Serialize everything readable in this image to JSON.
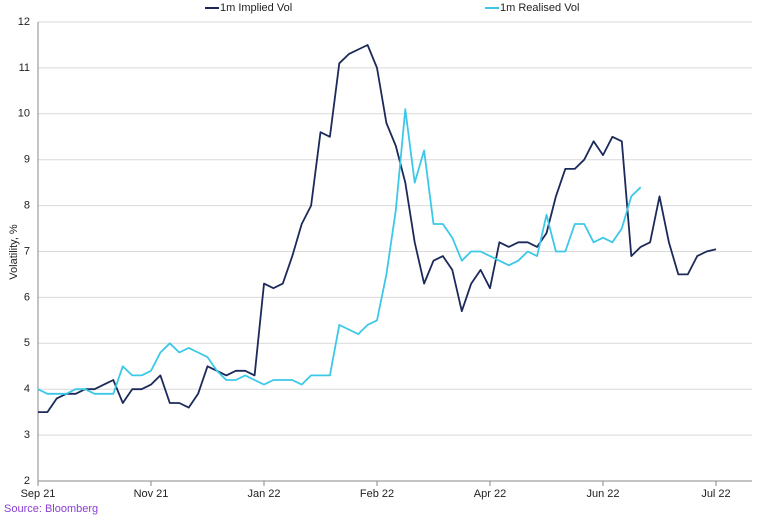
{
  "chart_data": {
    "type": "line",
    "y_label": "Volatility, %",
    "source": "Source: Bloomberg",
    "categories": [
      "Sep 21",
      null,
      null,
      null,
      null,
      null,
      null,
      null,
      null,
      null,
      null,
      null,
      "Nov 21",
      null,
      null,
      null,
      null,
      null,
      null,
      null,
      null,
      null,
      null,
      null,
      "Jan 22",
      null,
      null,
      null,
      null,
      null,
      null,
      null,
      null,
      null,
      null,
      null,
      "Feb 22",
      null,
      null,
      null,
      null,
      null,
      null,
      null,
      null,
      null,
      null,
      null,
      "Apr 22",
      null,
      null,
      null,
      null,
      null,
      null,
      null,
      null,
      null,
      null,
      null,
      "Jun 22",
      null,
      null,
      null,
      null,
      null,
      null,
      null,
      null,
      null,
      null,
      null,
      "Jul 22"
    ],
    "series": [
      {
        "name": "1m Implied Vol",
        "color": "#1b2a5a",
        "values": [
          3.5,
          3.5,
          3.8,
          3.9,
          3.9,
          4.0,
          4.0,
          4.1,
          4.2,
          3.7,
          4.0,
          4.0,
          4.1,
          4.3,
          3.7,
          3.7,
          3.6,
          3.9,
          4.5,
          4.4,
          4.3,
          4.4,
          4.4,
          4.3,
          6.3,
          6.2,
          6.3,
          6.9,
          7.6,
          8.0,
          9.6,
          9.5,
          11.1,
          11.3,
          11.4,
          11.5,
          11.0,
          9.8,
          9.3,
          8.5,
          7.2,
          6.3,
          6.8,
          6.9,
          6.6,
          5.7,
          6.3,
          6.6,
          6.2,
          7.2,
          7.1,
          7.2,
          7.2,
          7.1,
          7.4,
          8.2,
          8.8,
          8.8,
          9.0,
          9.4,
          9.1,
          9.5,
          9.4,
          6.9,
          7.1,
          7.2,
          8.2,
          7.2,
          6.5,
          6.5,
          6.9,
          7.0,
          7.05
        ]
      },
      {
        "name": "1m Realised Vol",
        "color": "#3cc8e8",
        "values": [
          4.0,
          3.9,
          3.9,
          3.9,
          4.0,
          4.0,
          3.9,
          3.9,
          3.9,
          4.5,
          4.3,
          4.3,
          4.4,
          4.8,
          5.0,
          4.8,
          4.9,
          4.8,
          4.7,
          4.4,
          4.2,
          4.2,
          4.3,
          4.2,
          4.1,
          4.2,
          4.2,
          4.2,
          4.1,
          4.3,
          4.3,
          4.3,
          5.4,
          5.3,
          5.2,
          5.4,
          5.5,
          6.5,
          7.9,
          10.1,
          8.5,
          9.2,
          7.6,
          7.6,
          7.3,
          6.8,
          7.0,
          7.0,
          6.9,
          6.8,
          6.7,
          6.8,
          7.0,
          6.9,
          7.8,
          7.0,
          7.0,
          7.6,
          7.6,
          7.2,
          7.3,
          7.2,
          7.5,
          8.2,
          8.4,
          null,
          null,
          null,
          null,
          null,
          null,
          null,
          null
        ]
      }
    ],
    "ylim": [
      2,
      12
    ],
    "yticks": [
      2,
      3,
      4,
      5,
      6,
      7,
      8,
      9,
      10,
      11,
      12
    ],
    "grid": true
  }
}
